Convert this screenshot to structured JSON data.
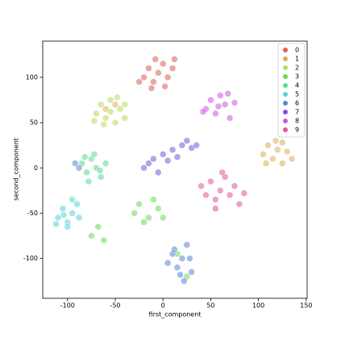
{
  "chart_data": {
    "type": "scatter",
    "xlabel": "first_component",
    "ylabel": "second_component",
    "xlim": [
      -126,
      151
    ],
    "ylim": [
      -144,
      140
    ],
    "xticks": [
      -100,
      -50,
      0,
      50,
      100,
      150
    ],
    "yticks": [
      -100,
      -50,
      0,
      50,
      100
    ],
    "legend": "upper right",
    "series": [
      {
        "name": "0",
        "color": "#db5f57",
        "x": [
          -20,
          -15,
          -10,
          -5,
          0,
          5,
          10,
          -8,
          -25,
          2,
          12,
          -12
        ],
        "y": [
          100,
          110,
          95,
          105,
          115,
          100,
          110,
          120,
          95,
          90,
          120,
          88
        ]
      },
      {
        "name": "1",
        "color": "#dbae57",
        "x": [
          105,
          110,
          115,
          120,
          125,
          130,
          118,
          108,
          135,
          125,
          -50,
          -60
        ],
        "y": [
          15,
          25,
          10,
          20,
          5,
          18,
          30,
          5,
          10,
          28,
          70,
          65
        ]
      },
      {
        "name": "2",
        "color": "#b9db57",
        "x": [
          -70,
          -65,
          -60,
          -55,
          -50,
          -45,
          -40,
          -62,
          -55,
          -48,
          -72,
          -40
        ],
        "y": [
          60,
          70,
          55,
          75,
          50,
          65,
          55,
          48,
          62,
          78,
          52,
          70
        ]
      },
      {
        "name": "3",
        "color": "#69db57",
        "x": [
          -25,
          -15,
          -5,
          -20,
          0,
          -68,
          -75,
          -62,
          15,
          25,
          -30,
          -10
        ],
        "y": [
          -40,
          -55,
          -45,
          -60,
          -55,
          -65,
          -75,
          -80,
          -95,
          -120,
          -50,
          -35
        ]
      },
      {
        "name": "4",
        "color": "#57db94",
        "x": [
          -85,
          -80,
          -75,
          -70,
          -65,
          -60,
          -78,
          -72,
          -66,
          -82
        ],
        "y": [
          5,
          -5,
          10,
          0,
          -10,
          5,
          -15,
          15,
          -3,
          12
        ]
      },
      {
        "name": "5",
        "color": "#57d3db",
        "x": [
          -110,
          -105,
          -100,
          -95,
          -90,
          -100,
          -112,
          -88,
          -95,
          -104
        ],
        "y": [
          -55,
          -45,
          -60,
          -50,
          -40,
          -65,
          -62,
          -55,
          -35,
          -52
        ]
      },
      {
        "name": "6",
        "color": "#5784db",
        "x": [
          10,
          15,
          20,
          25,
          30,
          5,
          22,
          12,
          28,
          -88,
          -92,
          18
        ],
        "y": [
          -95,
          -110,
          -100,
          -85,
          -115,
          -105,
          -125,
          -90,
          -100,
          0,
          5,
          -118
        ]
      },
      {
        "name": "7",
        "color": "#7957db",
        "x": [
          -20,
          -10,
          0,
          10,
          20,
          30,
          5,
          15,
          -5,
          25,
          35,
          -15
        ],
        "y": [
          0,
          10,
          15,
          20,
          25,
          22,
          8,
          12,
          -5,
          30,
          25,
          5
        ]
      },
      {
        "name": "8",
        "color": "#c957db",
        "x": [
          45,
          50,
          55,
          60,
          65,
          70,
          75,
          58,
          42,
          68
        ],
        "y": [
          65,
          75,
          60,
          80,
          70,
          55,
          72,
          68,
          62,
          82
        ]
      },
      {
        "name": "9",
        "color": "#db579e",
        "x": [
          40,
          45,
          50,
          55,
          60,
          65,
          70,
          75,
          80,
          55,
          62,
          85
        ],
        "y": [
          -20,
          -30,
          -15,
          -35,
          -25,
          -10,
          -30,
          -20,
          -40,
          -45,
          -5,
          -28
        ]
      }
    ]
  }
}
